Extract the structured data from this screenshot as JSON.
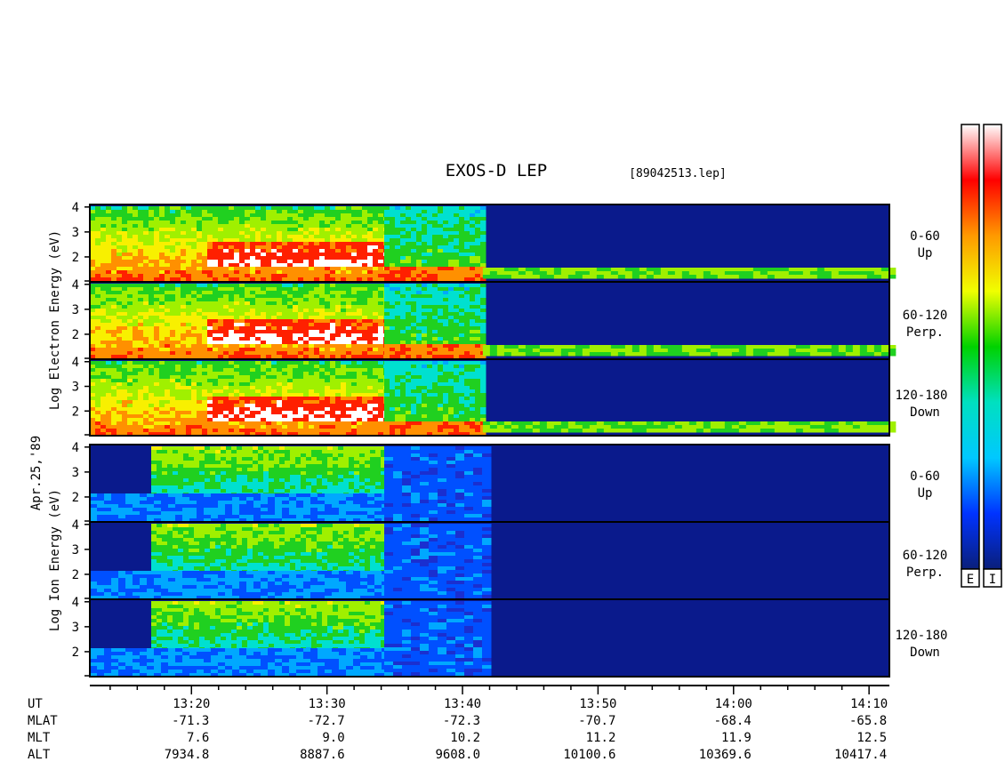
{
  "chart_data": {
    "type": "heatmap",
    "title": "EXOS-D LEP",
    "file_tag": "[89042513.lep]",
    "date_label": "Apr.25,'89",
    "x_axis": {
      "label": "UT",
      "ticks": [
        "13:20",
        "13:30",
        "13:40",
        "13:50",
        "14:00",
        "14:10"
      ],
      "tick_minutes": [
        800,
        810,
        820,
        830,
        840,
        850
      ],
      "xlim_minutes": [
        792.5,
        851.5
      ]
    },
    "ephemeris": [
      {
        "name": "MLAT",
        "values": [
          "-71.3",
          "-72.7",
          "-72.3",
          "-70.7",
          "-68.4",
          "-65.8"
        ]
      },
      {
        "name": "MLT",
        "values": [
          "7.6",
          "9.0",
          "10.2",
          "11.2",
          "11.9",
          "12.5"
        ]
      },
      {
        "name": "ALT",
        "values": [
          "7934.8",
          "8887.6",
          "9608.0",
          "10100.6",
          "10369.6",
          "10417.4"
        ]
      }
    ],
    "groups": [
      {
        "id": "electron",
        "ylabel": "Log Electron Energy (eV)",
        "ylim": [
          1,
          4.1
        ],
        "yticks": [
          2,
          3,
          4
        ],
        "panels": [
          {
            "pitch": "0-60",
            "direction": "Up"
          },
          {
            "pitch": "60-120",
            "direction": "Perp."
          },
          {
            "pitch": "120-180",
            "direction": "Down"
          }
        ]
      },
      {
        "id": "ion",
        "ylabel": "Log Ion Energy (eV)",
        "ylim": [
          1,
          4.1
        ],
        "yticks": [
          2,
          3,
          4
        ],
        "panels": [
          {
            "pitch": "0-60",
            "direction": "Up"
          },
          {
            "pitch": "60-120",
            "direction": "Perp."
          },
          {
            "pitch": "120-180",
            "direction": "Down"
          }
        ]
      }
    ],
    "colorbars": [
      {
        "label": "E",
        "stops": [
          "#0a1f7a",
          "#0033ff",
          "#00c8ff",
          "#00e0c0",
          "#00d200",
          "#f0ff00",
          "#ff9900",
          "#ff0000",
          "#ffffff"
        ]
      },
      {
        "label": "I",
        "stops": [
          "#0a1f7a",
          "#0033ff",
          "#00c8ff",
          "#00e0c0",
          "#00d200",
          "#f0ff00",
          "#ff9900",
          "#ff0000",
          "#ffffff"
        ]
      }
    ]
  }
}
